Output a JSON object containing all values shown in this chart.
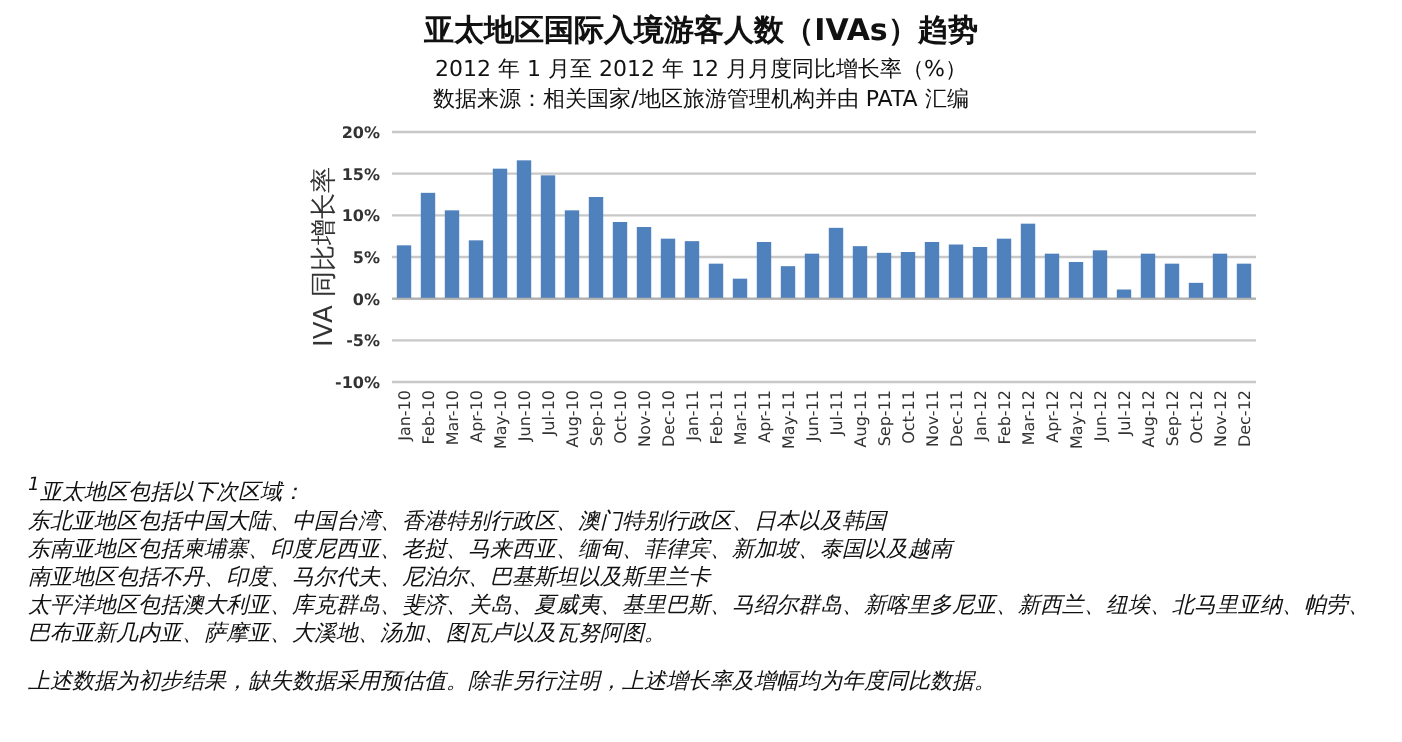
{
  "chart_data": {
    "type": "bar",
    "title": "亚太地区国际入境游客人数（IVAs）趋势",
    "subtitle": "2012 年 1 月至 2012 年 12 月月度同比增长率（%）",
    "ylabel": "IVA 同比增长率",
    "categories": [
      "Jan-10",
      "Feb-10",
      "Mar-10",
      "Apr-10",
      "May-10",
      "Jun-10",
      "Jul-10",
      "Aug-10",
      "Sep-10",
      "Oct-10",
      "Nov-10",
      "Dec-10",
      "Jan-11",
      "Feb-11",
      "Mar-11",
      "Apr-11",
      "May-11",
      "Jun-11",
      "Jul-11",
      "Aug-11",
      "Sep-11",
      "Oct-11",
      "Nov-11",
      "Dec-11",
      "Jan-12",
      "Feb-12",
      "Mar-12",
      "Apr-12",
      "May-12",
      "Jun-12",
      "Jul-12",
      "Aug-12",
      "Sep-12",
      "Oct-12",
      "Nov-12",
      "Dec-12"
    ],
    "values": [
      6.4,
      12.7,
      10.6,
      7.0,
      15.6,
      16.6,
      14.8,
      10.6,
      12.2,
      9.2,
      8.6,
      7.2,
      6.9,
      4.2,
      2.4,
      6.8,
      3.9,
      5.4,
      8.5,
      6.3,
      5.5,
      5.6,
      6.8,
      6.5,
      6.2,
      7.2,
      9.0,
      5.4,
      4.4,
      5.8,
      1.1,
      5.4,
      4.2,
      1.9,
      5.4,
      4.2
    ],
    "color": "#4f81bd",
    "ylim": [
      -10,
      20
    ],
    "yticks": [
      {
        "value": -10,
        "label": "-10%"
      },
      {
        "value": -5,
        "label": "-5%"
      },
      {
        "value": 0,
        "label": "0%"
      },
      {
        "value": 5,
        "label": "5%"
      },
      {
        "value": 10,
        "label": "10%"
      },
      {
        "value": 15,
        "label": "15%"
      },
      {
        "value": 20,
        "label": "20%"
      }
    ],
    "grid": "y",
    "annotations": [
      "数据来源：相关国家/地区旅游管理机构并由 PATA 汇编",
      "$^{1}$亚太地区包括以下次区域：",
      "东北亚地区包括中国大陆、中国台湾、香港特别行政区、澳门特别行政区、日本以及韩国",
      "东南亚地区包括柬埔寨、印度尼西亚、老挝、马来西亚、缅甸、菲律宾、新加坡、泰国以及越南",
      "南亚地区包括不丹、印度、马尔代夫、尼泊尔、巴基斯坦以及斯里兰卡",
      "太平洋地区包括澳大利亚、库克群岛、斐济、关岛、夏威夷、基里巴斯、马绍尔群岛、新喀里多尼亚、新西兰、纽埃、北马里亚纳、帕劳、巴布亚新几内亚、萨摩亚、大溪地、汤加、图瓦卢以及瓦努阿图。",
      "上述数据为初步结果，缺失数据采用预估值。除非另行注明，上述增长率及增幅均为年度同比数据。"
    ]
  }
}
